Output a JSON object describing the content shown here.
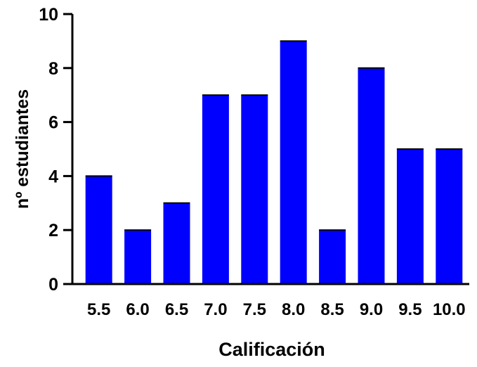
{
  "chart_data": {
    "type": "bar",
    "title": "",
    "xlabel": "Calificación",
    "ylabel": "nº estudiantes",
    "categories": [
      "5.5",
      "6.0",
      "6.5",
      "7.0",
      "7.5",
      "8.0",
      "8.5",
      "9.0",
      "9.5",
      "10.0"
    ],
    "values": [
      4,
      2,
      3,
      7,
      7,
      9,
      2,
      8,
      5,
      5
    ],
    "ylim": [
      0,
      10
    ],
    "yticks": [
      "0",
      "2",
      "4",
      "6",
      "8",
      "10"
    ],
    "grid": false,
    "legend": "none",
    "bar_color": "#0000ff"
  }
}
